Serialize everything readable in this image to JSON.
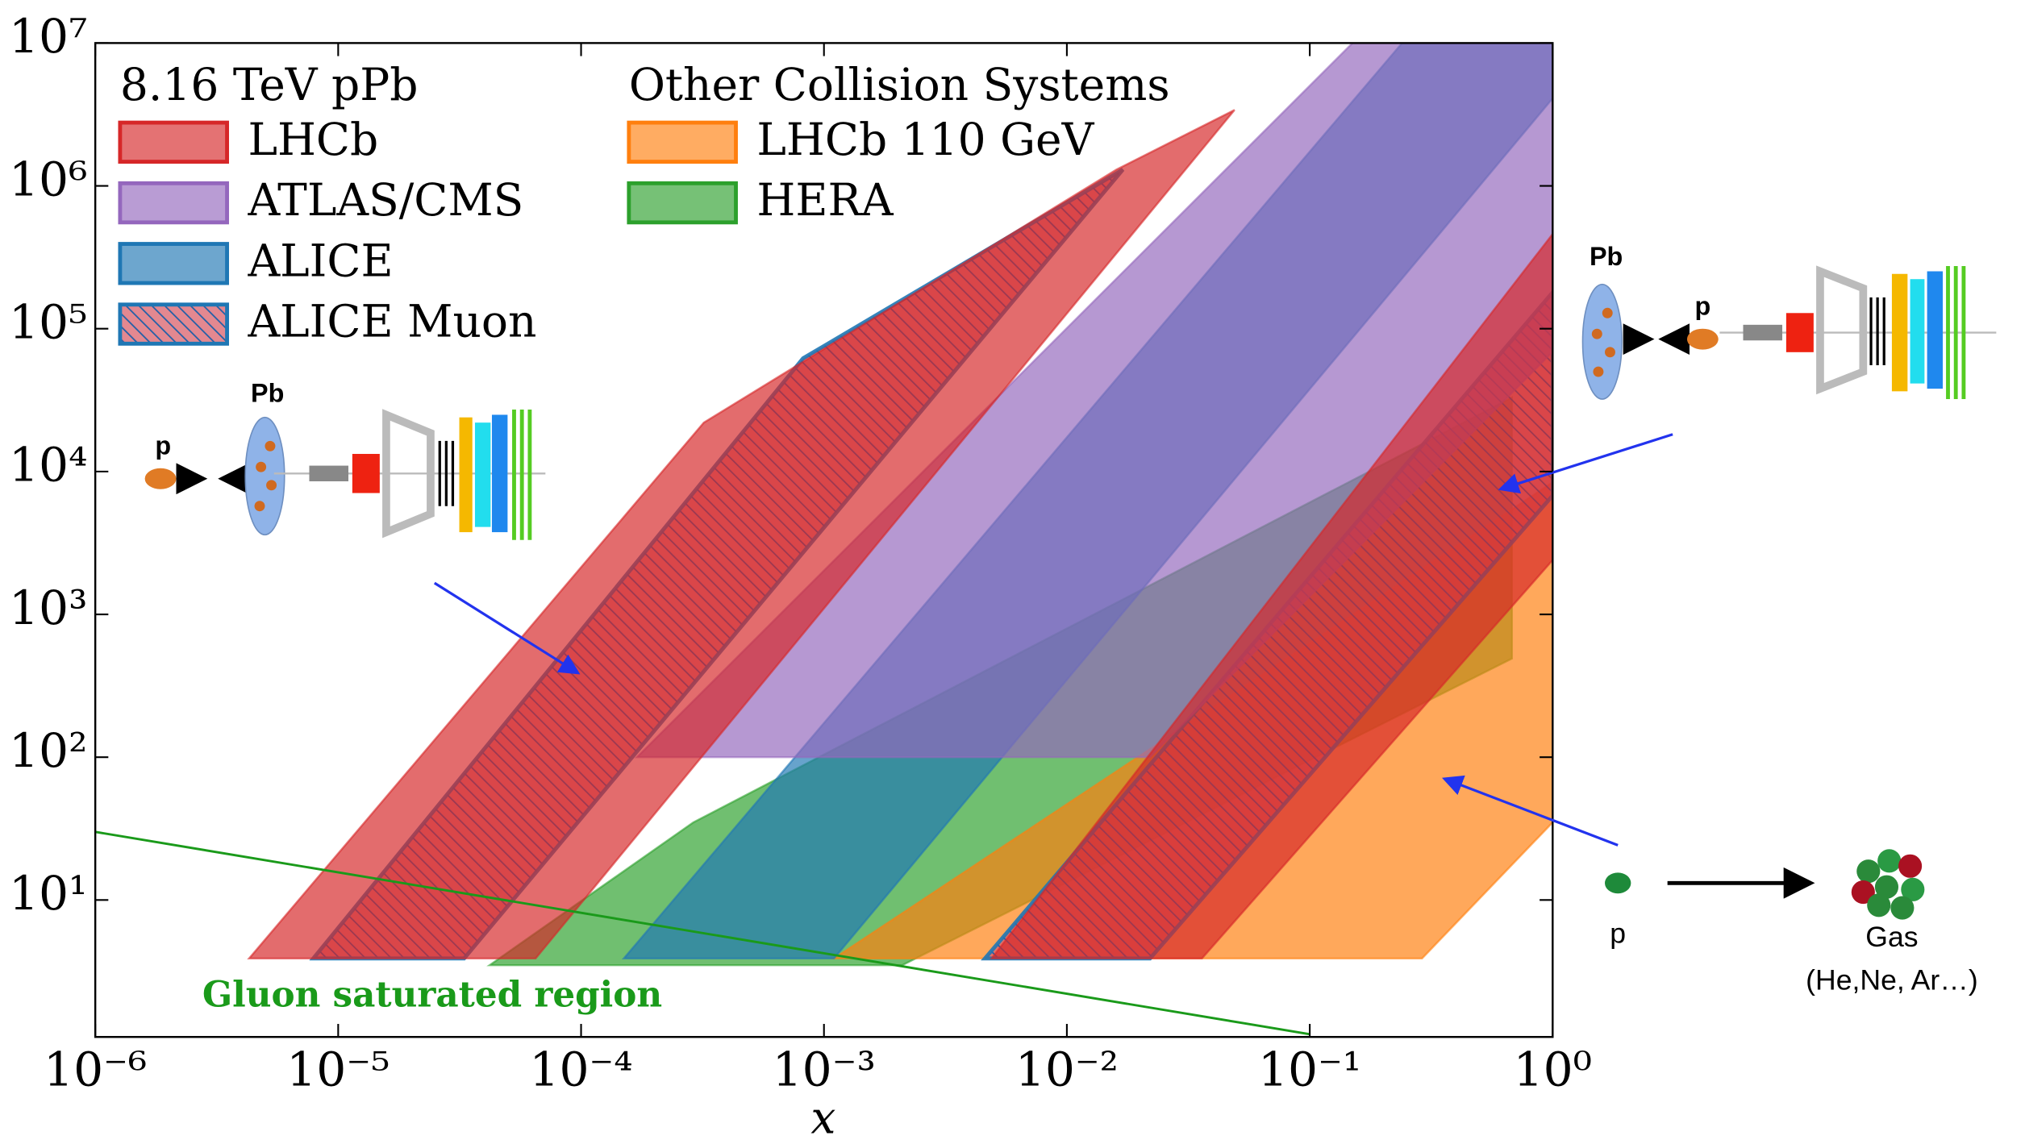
{
  "chart_data": {
    "type": "region",
    "xlabel": "x",
    "xlim": [
      1e-06,
      1
    ],
    "ylim": [
      1.1,
      10000000
    ],
    "xscale": "log",
    "yscale": "log",
    "xticks": [
      {
        "value": 1e-06,
        "label": "10⁻⁶"
      },
      {
        "value": 1e-05,
        "label": "10⁻⁵"
      },
      {
        "value": 0.0001,
        "label": "10⁻⁴"
      },
      {
        "value": 0.001,
        "label": "10⁻³"
      },
      {
        "value": 0.01,
        "label": "10⁻²"
      },
      {
        "value": 0.1,
        "label": "10⁻¹"
      },
      {
        "value": 1,
        "label": "10⁰"
      }
    ],
    "yticks": [
      {
        "value": 10,
        "label": "10¹"
      },
      {
        "value": 100,
        "label": "10²"
      },
      {
        "value": 1000,
        "label": "10³"
      },
      {
        "value": 10000,
        "label": "10⁴"
      },
      {
        "value": 100000,
        "label": "10⁵"
      },
      {
        "value": 1000000,
        "label": "10⁶"
      },
      {
        "value": 10000000,
        "label": "10⁷"
      }
    ],
    "groups": [
      {
        "title": "8.16 TeV pPb",
        "series": [
          {
            "name": "LHCb",
            "color": "#d62728",
            "hatch": false,
            "regions": [
              {
                "x": [
                  4.3e-06,
                  0.00032,
                  0.016,
                  0.049,
                  6.5e-05
                ],
                "y": [
                  3.9,
                  22000,
                  1300000,
                  3400000,
                  3.9
                ]
              },
              {
                "x": [
                  0.0049,
                  1,
                  1,
                  0.036
                ],
                "y": [
                  3.9,
                  460000,
                  2400,
                  3.9
                ]
              }
            ]
          },
          {
            "name": "ATLAS/CMS",
            "color": "#9467bd",
            "hatch": false,
            "regions": [
              {
                "x": [
                  0.00017,
                  0.15,
                  1,
                  1,
                  0.022
                ],
                "y": [
                  100,
                  10000000,
                  10000000,
                  69000,
                  100
                ]
              }
            ]
          },
          {
            "name": "ALICE",
            "color": "#1f77b4",
            "hatch": false,
            "regions": [
              {
                "x": [
                  0.00015,
                  0.24,
                  1,
                  1,
                  0.0011
                ],
                "y": [
                  3.9,
                  10000000,
                  10000000,
                  4100000,
                  3.9
                ]
              }
            ]
          },
          {
            "name": "ALICE Muon",
            "color": "#1f77b4",
            "hatch": true,
            "regions": [
              {
                "x": [
                  7.9e-06,
                  0.00082,
                  0.017,
                  3.3e-05
                ],
                "y": [
                  3.9,
                  62000,
                  1300000,
                  3.9
                ]
              },
              {
                "x": [
                  0.0046,
                  1,
                  1,
                  0.022
                ],
                "y": [
                  3.9,
                  180000,
                  6800,
                  3.9
                ]
              }
            ]
          }
        ]
      },
      {
        "title": "Other Collision Systems",
        "series": [
          {
            "name": "LHCb 110 GeV",
            "color": "#ff7f0e",
            "hatch": false,
            "regions": [
              {
                "x": [
                  0.0011,
                  1,
                  1,
                  0.29
                ],
                "y": [
                  3.9,
                  8400,
                  35,
                  3.9
                ]
              }
            ]
          },
          {
            "name": "HERA",
            "color": "#2ca02c",
            "hatch": false,
            "regions": [
              {
                "x": [
                  4.2e-05,
                  0.00029,
                  0.68,
                  0.68,
                  0.0021
                ],
                "y": [
                  3.5,
                  35,
                  33000,
                  490,
                  3.5
                ]
              }
            ]
          }
        ]
      }
    ],
    "lines": [
      {
        "name": "Gluon saturated region",
        "color": "#1a9a1a",
        "x": [
          1e-06,
          0.1
        ],
        "y": [
          30,
          1.15
        ]
      }
    ],
    "annotations": {
      "left_beam": [
        "p",
        "Pb"
      ],
      "right_beam": [
        "Pb",
        "p"
      ],
      "fixed_target": [
        "p",
        "Gas",
        "(He,Ne, Ar…)"
      ]
    }
  }
}
